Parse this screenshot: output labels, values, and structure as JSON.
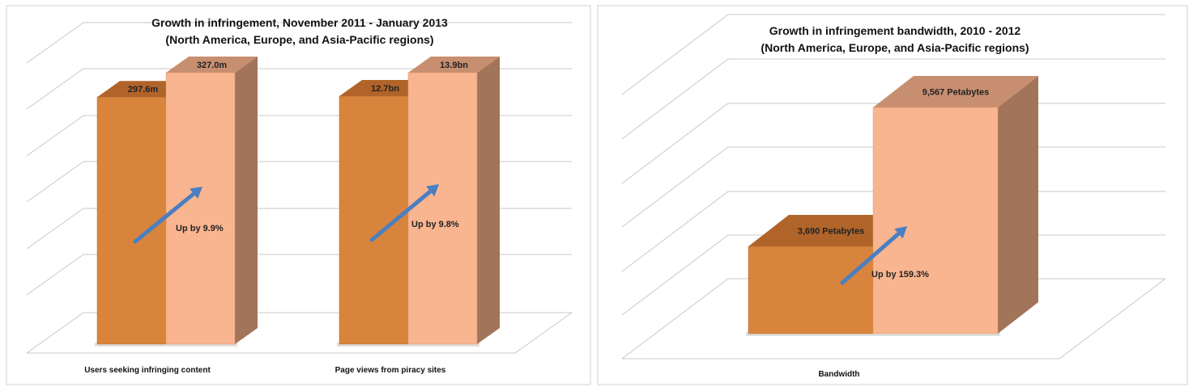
{
  "colors": {
    "before_front": "#d9843c",
    "before_top": "#b0642a",
    "after_front": "#f8b590",
    "after_top": "#c78f70",
    "after_side": "#a27459",
    "arrow": "#4a7fc0",
    "grid": "#c8c8c8"
  },
  "chart_data": [
    {
      "type": "bar",
      "title": "Growth in infringement, November 2011 - January 2013",
      "subtitle": "(North America, Europe, and Asia-Pacific regions)",
      "categories": [
        "Users seeking infringing content",
        "Page views from piracy sites"
      ],
      "series": [
        {
          "name": "November 2011",
          "values": [
            297.6,
            12.7
          ],
          "labels": [
            "297.6m",
            "12.7bn"
          ]
        },
        {
          "name": "January 2013",
          "values": [
            327.0,
            13.9
          ],
          "labels": [
            "327.0m",
            "13.9bn"
          ]
        }
      ],
      "annotations": [
        "Up by 9.9%",
        "Up by 9.8%"
      ],
      "grid": true
    },
    {
      "type": "bar",
      "title": "Growth in infringement bandwidth, 2010 - 2012",
      "subtitle": "(North America, Europe, and Asia-Pacific regions)",
      "categories": [
        "Bandwidth"
      ],
      "series": [
        {
          "name": "2010",
          "values": [
            3690
          ],
          "labels": [
            "3,690 Petabytes"
          ]
        },
        {
          "name": "2012",
          "values": [
            9567
          ],
          "labels": [
            "9,567 Petabytes"
          ]
        }
      ],
      "annotations": [
        "Up by 159.3%"
      ],
      "grid": true
    }
  ]
}
